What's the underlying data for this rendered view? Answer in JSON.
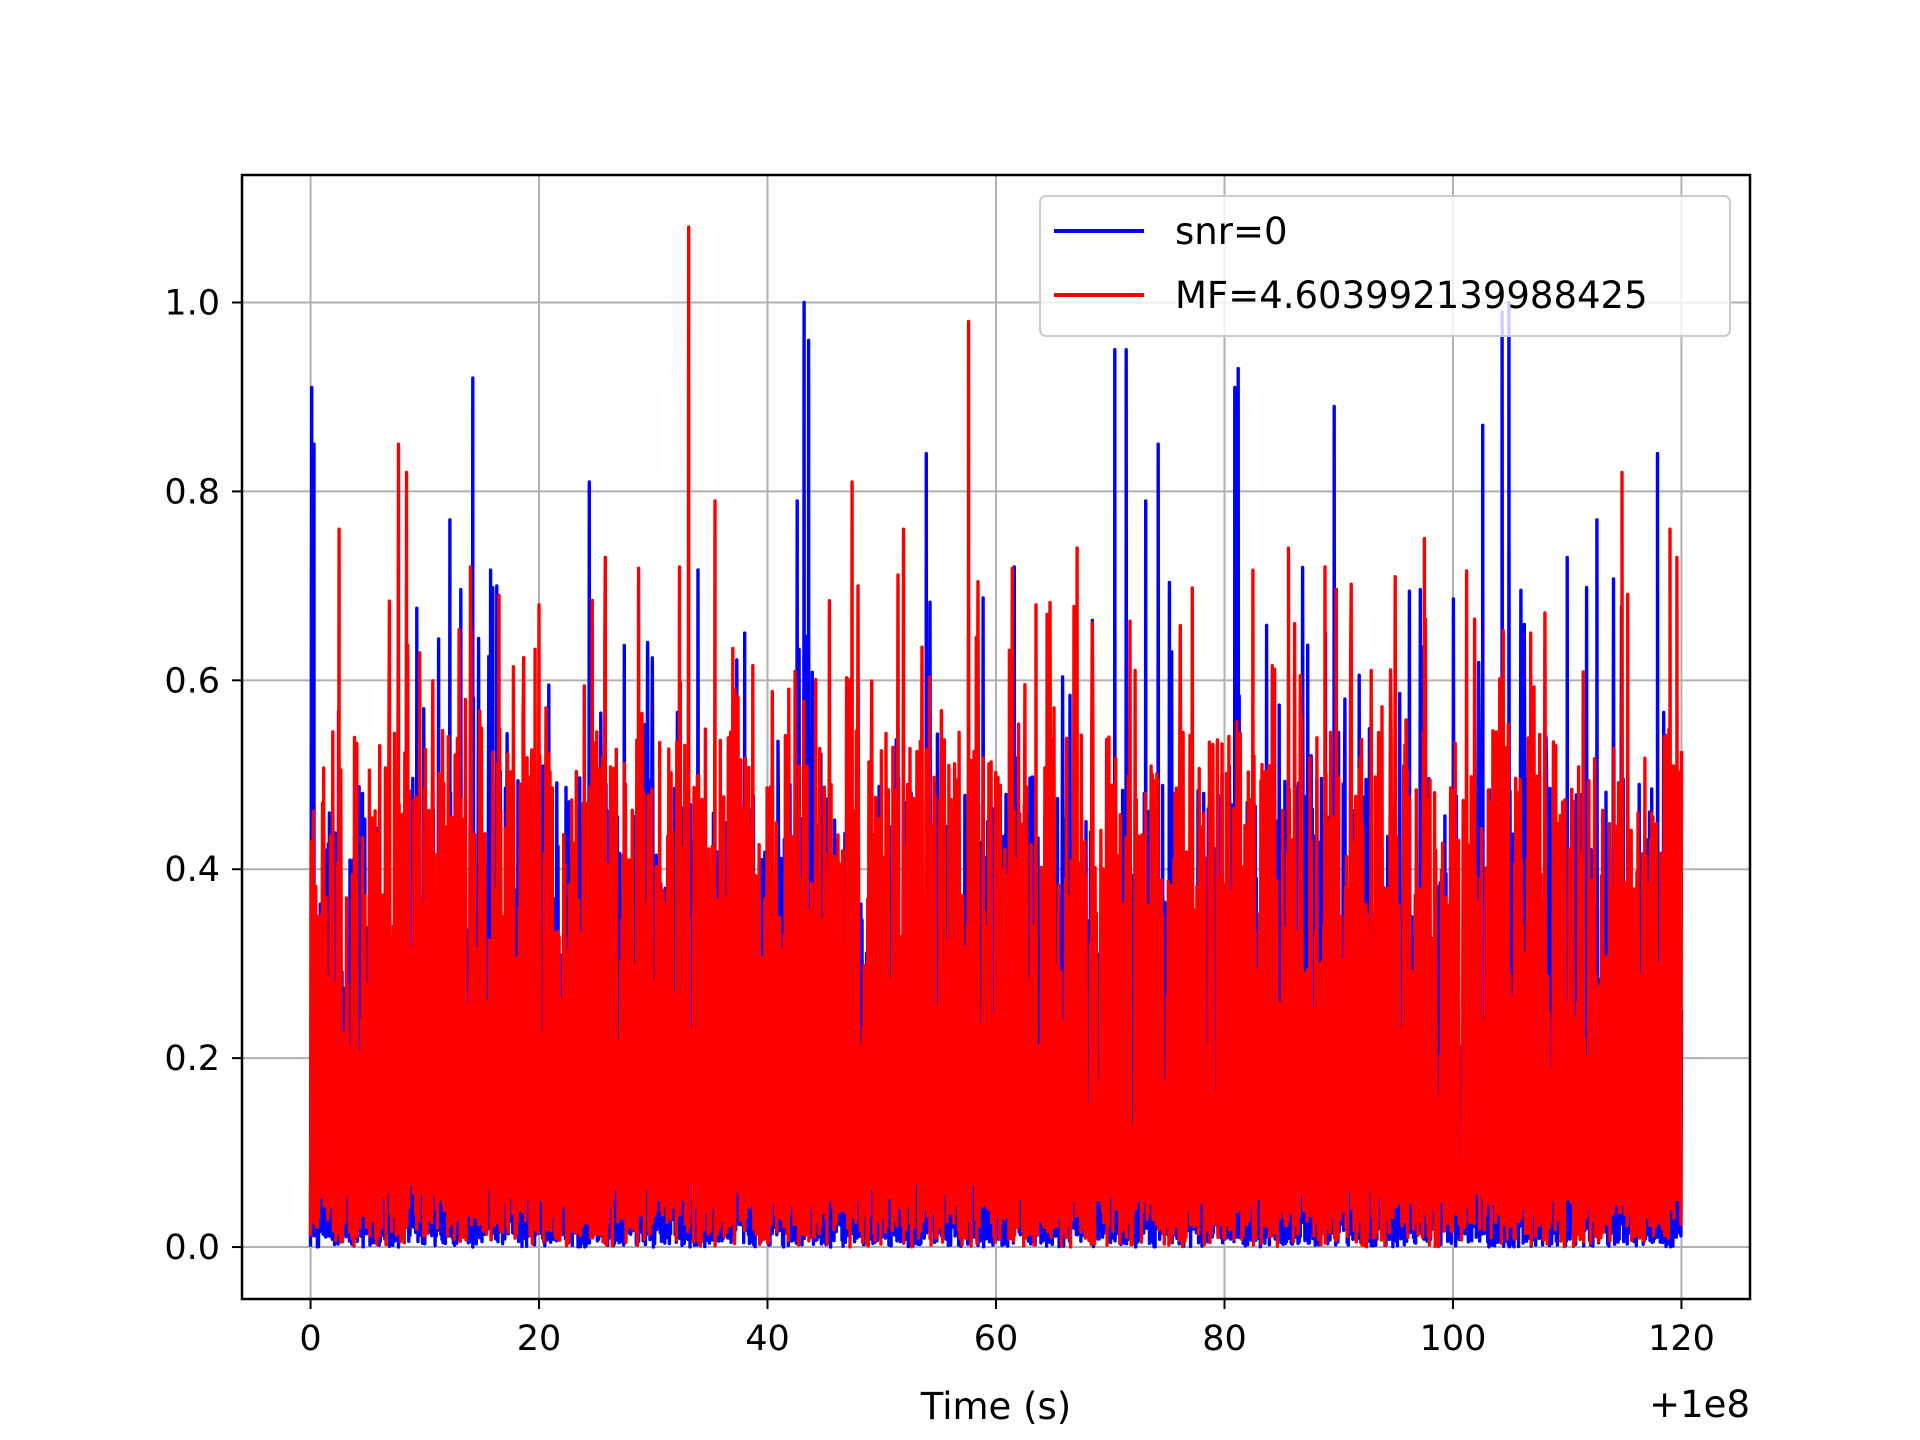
{
  "chart_data": {
    "type": "line",
    "title": "",
    "xlabel": "Time (s)",
    "ylabel": "",
    "x_offset_label": "+1e8",
    "xlim": [
      -6,
      126
    ],
    "ylim": [
      -0.055,
      1.135
    ],
    "x_ticks": [
      0,
      20,
      40,
      60,
      80,
      100,
      120
    ],
    "x_tick_labels": [
      "0",
      "20",
      "40",
      "60",
      "80",
      "100",
      "120"
    ],
    "y_ticks": [
      0.0,
      0.2,
      0.4,
      0.6,
      0.8,
      1.0
    ],
    "y_tick_labels": [
      "0.0",
      "0.2",
      "0.4",
      "0.6",
      "0.8",
      "1.0"
    ],
    "grid": true,
    "legend_position": "top-right",
    "series": [
      {
        "name": "snr=0",
        "color": "#0000ff",
        "x_range": [
          0,
          120
        ],
        "value_range": [
          0.0,
          1.0
        ],
        "peaks": [
          {
            "x": 0.1,
            "y": 0.91
          },
          {
            "x": 0.3,
            "y": 0.85
          },
          {
            "x": 9.3,
            "y": 0.62
          },
          {
            "x": 12.2,
            "y": 0.77
          },
          {
            "x": 14.2,
            "y": 0.92
          },
          {
            "x": 16.3,
            "y": 0.7
          },
          {
            "x": 24.4,
            "y": 0.81
          },
          {
            "x": 29.5,
            "y": 0.64
          },
          {
            "x": 38.0,
            "y": 0.65
          },
          {
            "x": 42.6,
            "y": 0.79
          },
          {
            "x": 43.2,
            "y": 1.0
          },
          {
            "x": 43.6,
            "y": 0.96
          },
          {
            "x": 53.9,
            "y": 0.84
          },
          {
            "x": 61.6,
            "y": 0.72
          },
          {
            "x": 70.4,
            "y": 0.95
          },
          {
            "x": 71.4,
            "y": 0.95
          },
          {
            "x": 73.1,
            "y": 0.79
          },
          {
            "x": 74.2,
            "y": 0.85
          },
          {
            "x": 80.9,
            "y": 0.91
          },
          {
            "x": 81.2,
            "y": 0.93
          },
          {
            "x": 89.6,
            "y": 0.89
          },
          {
            "x": 102.6,
            "y": 0.87
          },
          {
            "x": 104.3,
            "y": 0.99
          },
          {
            "x": 104.9,
            "y": 1.0
          },
          {
            "x": 110.0,
            "y": 0.73
          },
          {
            "x": 112.6,
            "y": 0.77
          },
          {
            "x": 117.9,
            "y": 0.84
          }
        ],
        "typical_band": [
          0.02,
          0.5
        ]
      },
      {
        "name": "MF=4.603992139988425",
        "color": "#ff0000",
        "x_range": [
          0,
          120
        ],
        "value_range": [
          0.0,
          1.085
        ],
        "peaks": [
          {
            "x": 2.5,
            "y": 0.76
          },
          {
            "x": 7.7,
            "y": 0.85
          },
          {
            "x": 8.4,
            "y": 0.82
          },
          {
            "x": 14.0,
            "y": 0.72
          },
          {
            "x": 16.5,
            "y": 0.69
          },
          {
            "x": 20.0,
            "y": 0.68
          },
          {
            "x": 25.8,
            "y": 0.73
          },
          {
            "x": 32.3,
            "y": 0.72
          },
          {
            "x": 33.1,
            "y": 1.08
          },
          {
            "x": 35.4,
            "y": 0.79
          },
          {
            "x": 47.4,
            "y": 0.81
          },
          {
            "x": 51.9,
            "y": 0.76
          },
          {
            "x": 57.6,
            "y": 0.98
          },
          {
            "x": 63.5,
            "y": 0.68
          },
          {
            "x": 67.1,
            "y": 0.74
          },
          {
            "x": 85.6,
            "y": 0.74
          },
          {
            "x": 88.8,
            "y": 0.72
          },
          {
            "x": 97.5,
            "y": 0.75
          },
          {
            "x": 106.8,
            "y": 0.65
          },
          {
            "x": 114.8,
            "y": 0.82
          },
          {
            "x": 119.0,
            "y": 0.76
          },
          {
            "x": 119.6,
            "y": 0.73
          }
        ],
        "typical_band": [
          0.05,
          0.55
        ]
      }
    ]
  }
}
